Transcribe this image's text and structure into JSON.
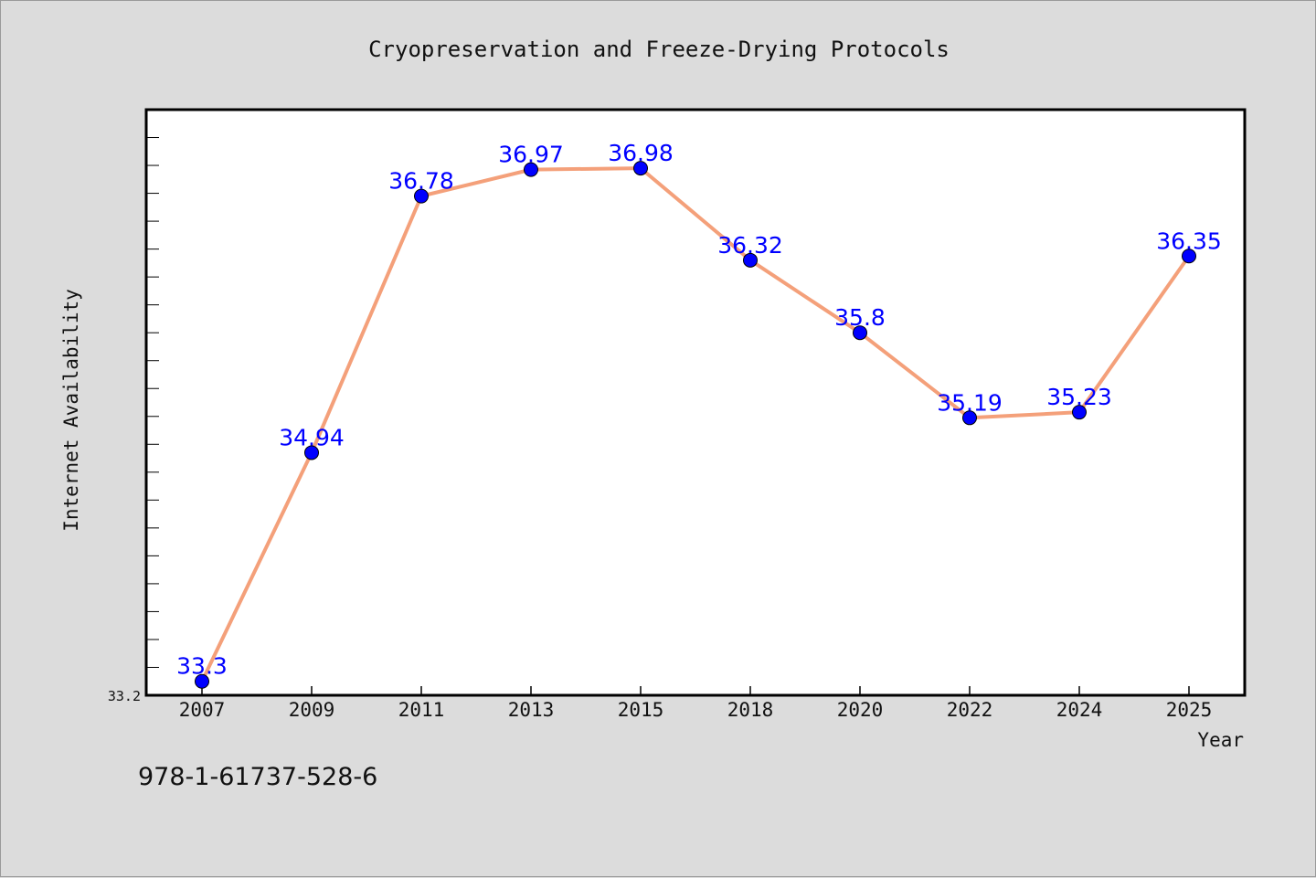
{
  "chart_data": {
    "type": "line",
    "title": "Cryopreservation and Freeze-Drying Protocols",
    "xlabel": "Year",
    "ylabel": "Internet Availability",
    "categories": [
      "2007",
      "2009",
      "2011",
      "2013",
      "2015",
      "2018",
      "2020",
      "2022",
      "2024",
      "2025"
    ],
    "series": [
      {
        "values": [
          33.3,
          34.94,
          36.78,
          36.97,
          36.98,
          36.32,
          35.8,
          35.19,
          35.23,
          36.35
        ],
        "labels": [
          "33.3",
          "34.94",
          "36.78",
          "36.97",
          "36.98",
          "36.32",
          "35.8",
          "35.19",
          "35.23",
          "36.35"
        ],
        "line_color": "#f4a07a",
        "marker_color": "#0000ff"
      }
    ],
    "ylim": [
      33.2,
      37.4
    ],
    "y_tick_label": "33.2",
    "grid": false,
    "legend": "none"
  },
  "footer": {
    "isbn": "978-1-61737-528-6"
  },
  "colors": {
    "background": "#dcdcdc",
    "plot_background": "#ffffff",
    "label_color": "#0000ff"
  }
}
